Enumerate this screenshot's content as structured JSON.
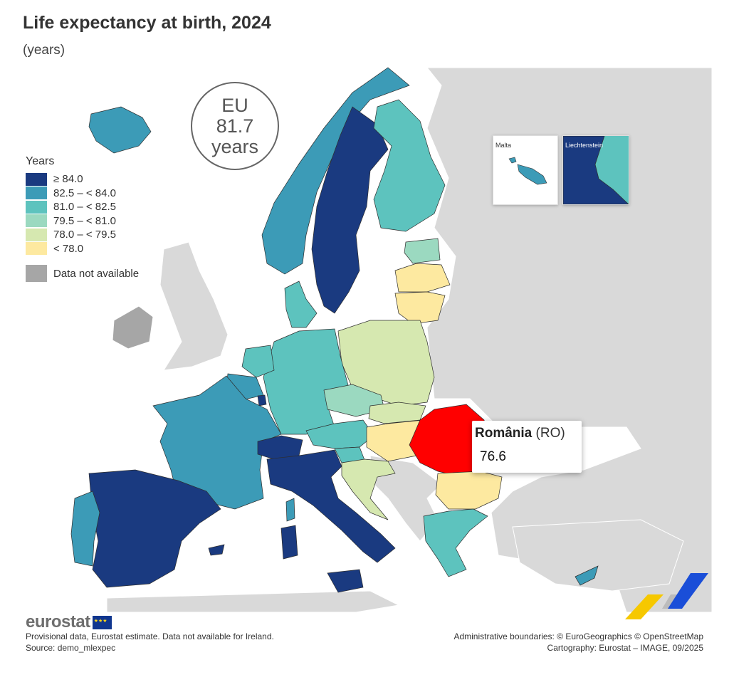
{
  "title": "Life expectancy at birth, 2024",
  "subtitle": "(years)",
  "eu_badge": {
    "line1": "EU",
    "line2": "81.7",
    "line3": "years"
  },
  "legend": {
    "title": "Years",
    "classes": [
      {
        "label": "≥ 84.0",
        "color": "#1a3a80"
      },
      {
        "label": "82.5 – < 84.0",
        "color": "#3c9bb7"
      },
      {
        "label": "81.0 – < 82.5",
        "color": "#5dc3be"
      },
      {
        "label": "79.5 – < 81.0",
        "color": "#9bd9c0"
      },
      {
        "label": "78.0 – < 79.5",
        "color": "#d6e8b0"
      },
      {
        "label": "< 78.0",
        "color": "#fde9a0"
      }
    ],
    "not_available": {
      "label": "Data not available",
      "color": "#a6a6a6"
    }
  },
  "insets": {
    "malta": "Malta",
    "liechtenstein": "Liechtenstein"
  },
  "tooltip": {
    "country": "România",
    "code": "(RO)",
    "value": "76.6",
    "highlight_color": "#ff0000"
  },
  "footer": {
    "logo": "eurostat",
    "note": "Provisional data, Eurostat estimate. Data not available for Ireland.",
    "source": "Source: demo_mlexpec",
    "boundaries": "Administrative boundaries: © EuroGeographics © OpenStreetMap",
    "cartography": "Cartography: Eurostat – IMAGE, 09/2025"
  },
  "colors": {
    "non_eu": "#d9d9d9",
    "sea": "#ffffff"
  }
}
